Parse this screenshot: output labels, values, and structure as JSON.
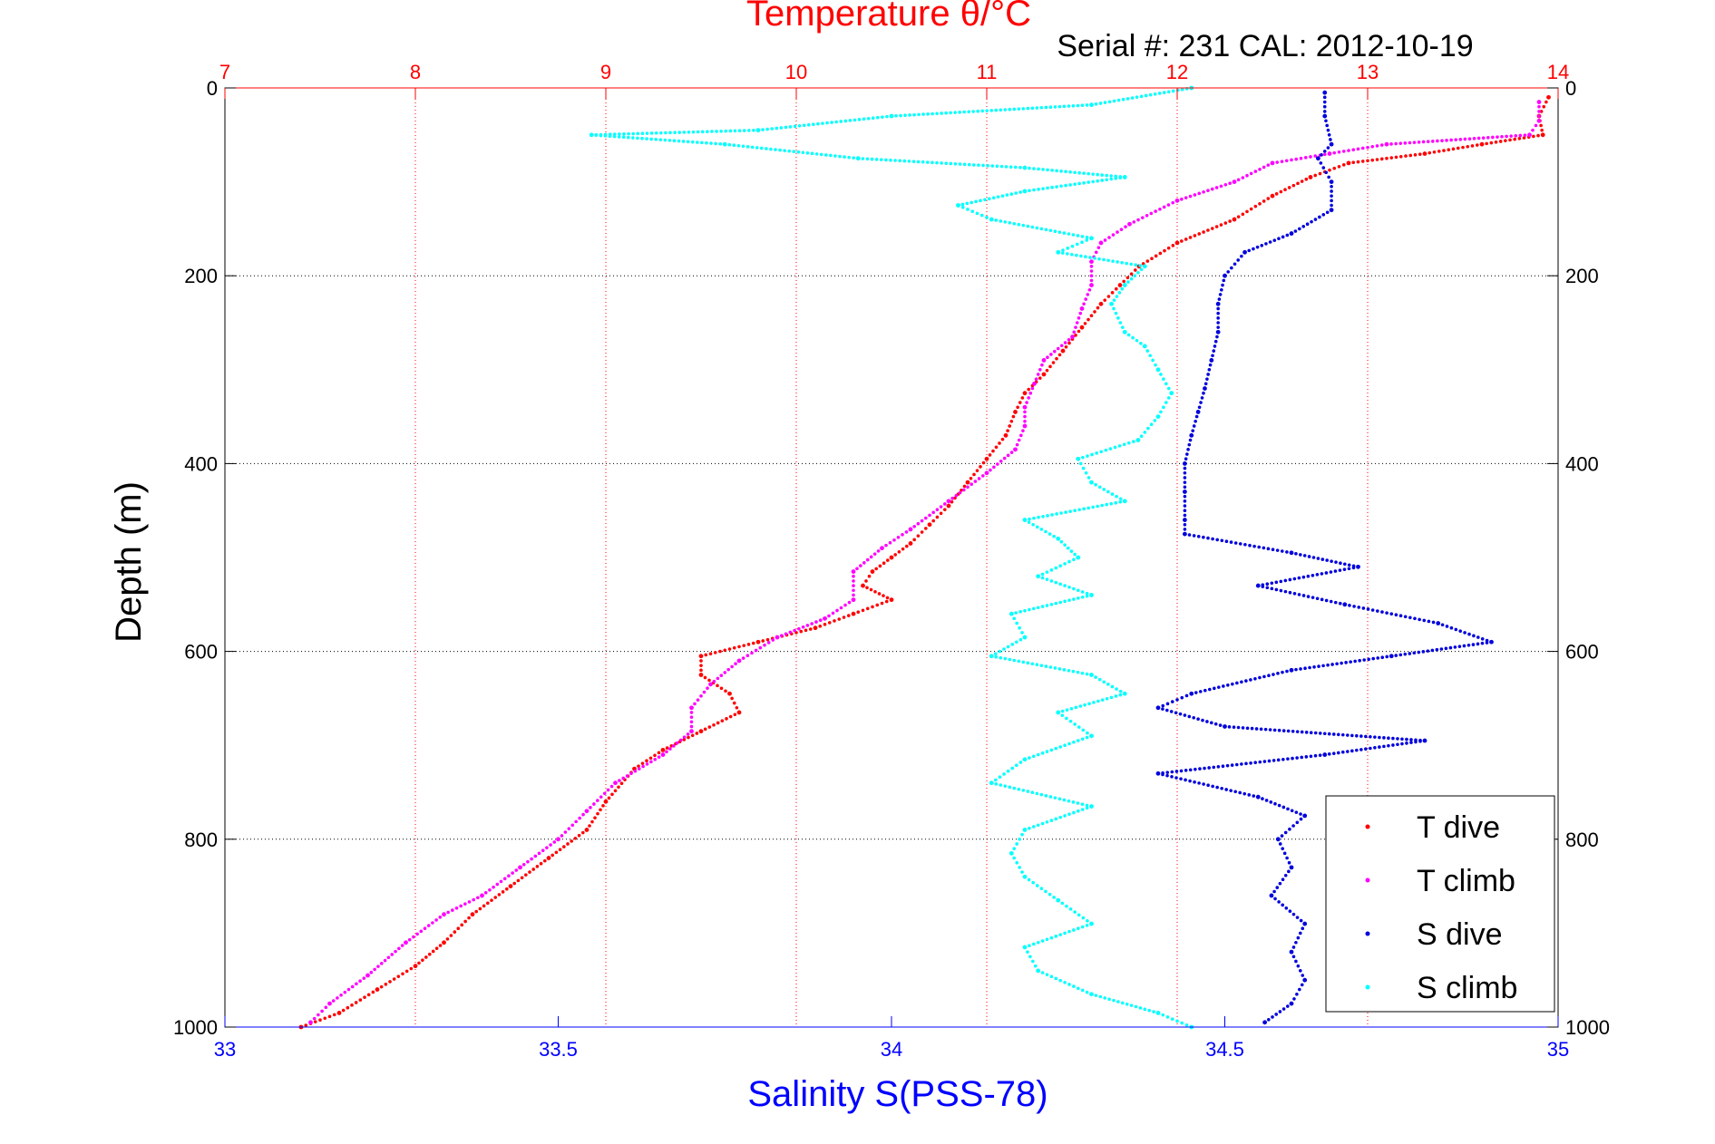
{
  "chart_data": {
    "type": "scatter",
    "title": "Temperature θ/°C",
    "subtitle": "Serial #: 231   CAL: 2012-10-19",
    "xlabel": "Salinity S(PSS-78)",
    "ylabel": "Depth (m)",
    "x_top": {
      "ticks": [
        "7",
        "8",
        "9",
        "10",
        "11",
        "12",
        "13",
        "14"
      ],
      "range": [
        7,
        14
      ]
    },
    "x_bottom": {
      "ticks": [
        "33",
        "33.5",
        "34",
        "34.5",
        "35"
      ],
      "range": [
        33,
        35
      ]
    },
    "y": {
      "ticks": [
        "0",
        "200",
        "400",
        "600",
        "800",
        "1000"
      ],
      "range": [
        0,
        1000
      ],
      "reversed": true
    },
    "grid": true,
    "legend_position": "bottom-right",
    "colors": {
      "t_dive": "#ff0000",
      "t_climb": "#ff00ff",
      "s_dive": "#0000dd",
      "s_climb": "#00ffff",
      "top_axis": "#ff0000",
      "bottom_axis": "#0000ff"
    },
    "series": [
      {
        "name": "T dive",
        "axis": "temperature",
        "color": "#ff0000",
        "points": [
          [
            13.95,
            10
          ],
          [
            13.9,
            30
          ],
          [
            13.92,
            50
          ],
          [
            13.6,
            60
          ],
          [
            13.3,
            70
          ],
          [
            12.9,
            80
          ],
          [
            12.7,
            95
          ],
          [
            12.5,
            115
          ],
          [
            12.3,
            140
          ],
          [
            12.0,
            165
          ],
          [
            11.8,
            190
          ],
          [
            11.7,
            210
          ],
          [
            11.6,
            230
          ],
          [
            11.5,
            255
          ],
          [
            11.4,
            280
          ],
          [
            11.3,
            305
          ],
          [
            11.2,
            325
          ],
          [
            11.15,
            345
          ],
          [
            11.1,
            370
          ],
          [
            11.0,
            395
          ],
          [
            10.9,
            420
          ],
          [
            10.8,
            445
          ],
          [
            10.7,
            465
          ],
          [
            10.6,
            485
          ],
          [
            10.5,
            500
          ],
          [
            10.4,
            515
          ],
          [
            10.35,
            530
          ],
          [
            10.5,
            545
          ],
          [
            10.3,
            560
          ],
          [
            10.1,
            575
          ],
          [
            9.8,
            590
          ],
          [
            9.5,
            605
          ],
          [
            9.5,
            625
          ],
          [
            9.65,
            645
          ],
          [
            9.7,
            665
          ],
          [
            9.5,
            685
          ],
          [
            9.3,
            705
          ],
          [
            9.15,
            725
          ],
          [
            9.0,
            760
          ],
          [
            8.9,
            790
          ],
          [
            8.7,
            820
          ],
          [
            8.5,
            850
          ],
          [
            8.3,
            880
          ],
          [
            8.15,
            910
          ],
          [
            8.0,
            935
          ],
          [
            7.8,
            960
          ],
          [
            7.6,
            985
          ],
          [
            7.4,
            1000
          ]
        ]
      },
      {
        "name": "T climb",
        "axis": "temperature",
        "color": "#ff00ff",
        "points": [
          [
            13.9,
            15
          ],
          [
            13.9,
            35
          ],
          [
            13.85,
            50
          ],
          [
            13.1,
            60
          ],
          [
            12.8,
            70
          ],
          [
            12.5,
            80
          ],
          [
            12.3,
            100
          ],
          [
            12.0,
            120
          ],
          [
            11.75,
            145
          ],
          [
            11.6,
            165
          ],
          [
            11.55,
            185
          ],
          [
            11.55,
            210
          ],
          [
            11.5,
            235
          ],
          [
            11.45,
            265
          ],
          [
            11.3,
            290
          ],
          [
            11.25,
            315
          ],
          [
            11.2,
            340
          ],
          [
            11.2,
            360
          ],
          [
            11.15,
            385
          ],
          [
            11.0,
            410
          ],
          [
            10.8,
            440
          ],
          [
            10.6,
            470
          ],
          [
            10.45,
            490
          ],
          [
            10.3,
            515
          ],
          [
            10.3,
            545
          ],
          [
            10.15,
            565
          ],
          [
            9.9,
            585
          ],
          [
            9.7,
            610
          ],
          [
            9.55,
            635
          ],
          [
            9.45,
            660
          ],
          [
            9.45,
            685
          ],
          [
            9.3,
            710
          ],
          [
            9.05,
            740
          ],
          [
            8.9,
            770
          ],
          [
            8.75,
            800
          ],
          [
            8.55,
            830
          ],
          [
            8.35,
            860
          ],
          [
            8.15,
            880
          ],
          [
            7.95,
            910
          ],
          [
            7.75,
            945
          ],
          [
            7.55,
            975
          ],
          [
            7.45,
            995
          ]
        ]
      },
      {
        "name": "S dive",
        "axis": "salinity",
        "color": "#0000dd",
        "points": [
          [
            34.65,
            5
          ],
          [
            34.65,
            30
          ],
          [
            34.66,
            60
          ],
          [
            34.64,
            75
          ],
          [
            34.66,
            100
          ],
          [
            34.66,
            130
          ],
          [
            34.6,
            155
          ],
          [
            34.53,
            175
          ],
          [
            34.5,
            200
          ],
          [
            34.49,
            230
          ],
          [
            34.49,
            260
          ],
          [
            34.48,
            290
          ],
          [
            34.47,
            320
          ],
          [
            34.46,
            345
          ],
          [
            34.45,
            370
          ],
          [
            34.44,
            400
          ],
          [
            34.44,
            430
          ],
          [
            34.44,
            460
          ],
          [
            34.44,
            475
          ],
          [
            34.6,
            495
          ],
          [
            34.7,
            510
          ],
          [
            34.55,
            530
          ],
          [
            34.68,
            550
          ],
          [
            34.82,
            570
          ],
          [
            34.9,
            590
          ],
          [
            34.75,
            605
          ],
          [
            34.6,
            620
          ],
          [
            34.45,
            645
          ],
          [
            34.4,
            660
          ],
          [
            34.5,
            680
          ],
          [
            34.8,
            695
          ],
          [
            34.65,
            710
          ],
          [
            34.4,
            730
          ],
          [
            34.55,
            755
          ],
          [
            34.62,
            775
          ],
          [
            34.58,
            800
          ],
          [
            34.6,
            830
          ],
          [
            34.57,
            860
          ],
          [
            34.62,
            890
          ],
          [
            34.6,
            920
          ],
          [
            34.62,
            950
          ],
          [
            34.6,
            975
          ],
          [
            34.56,
            995
          ]
        ]
      },
      {
        "name": "S climb",
        "axis": "salinity",
        "color": "#00ffff",
        "points": [
          [
            34.45,
            0
          ],
          [
            34.3,
            18
          ],
          [
            34.0,
            30
          ],
          [
            33.8,
            45
          ],
          [
            33.55,
            50
          ],
          [
            33.75,
            60
          ],
          [
            33.95,
            75
          ],
          [
            34.2,
            85
          ],
          [
            34.35,
            95
          ],
          [
            34.2,
            110
          ],
          [
            34.1,
            125
          ],
          [
            34.15,
            140
          ],
          [
            34.3,
            160
          ],
          [
            34.25,
            175
          ],
          [
            34.38,
            190
          ],
          [
            34.35,
            210
          ],
          [
            34.33,
            230
          ],
          [
            34.35,
            260
          ],
          [
            34.38,
            275
          ],
          [
            34.4,
            300
          ],
          [
            34.42,
            325
          ],
          [
            34.4,
            350
          ],
          [
            34.37,
            375
          ],
          [
            34.28,
            395
          ],
          [
            34.3,
            420
          ],
          [
            34.35,
            440
          ],
          [
            34.2,
            460
          ],
          [
            34.25,
            480
          ],
          [
            34.28,
            500
          ],
          [
            34.22,
            520
          ],
          [
            34.3,
            540
          ],
          [
            34.18,
            560
          ],
          [
            34.2,
            585
          ],
          [
            34.15,
            605
          ],
          [
            34.3,
            625
          ],
          [
            34.35,
            645
          ],
          [
            34.25,
            665
          ],
          [
            34.3,
            690
          ],
          [
            34.2,
            715
          ],
          [
            34.15,
            740
          ],
          [
            34.3,
            765
          ],
          [
            34.2,
            790
          ],
          [
            34.18,
            815
          ],
          [
            34.2,
            840
          ],
          [
            34.25,
            865
          ],
          [
            34.3,
            890
          ],
          [
            34.2,
            915
          ],
          [
            34.22,
            940
          ],
          [
            34.3,
            965
          ],
          [
            34.4,
            985
          ],
          [
            34.45,
            1000
          ]
        ]
      }
    ]
  }
}
